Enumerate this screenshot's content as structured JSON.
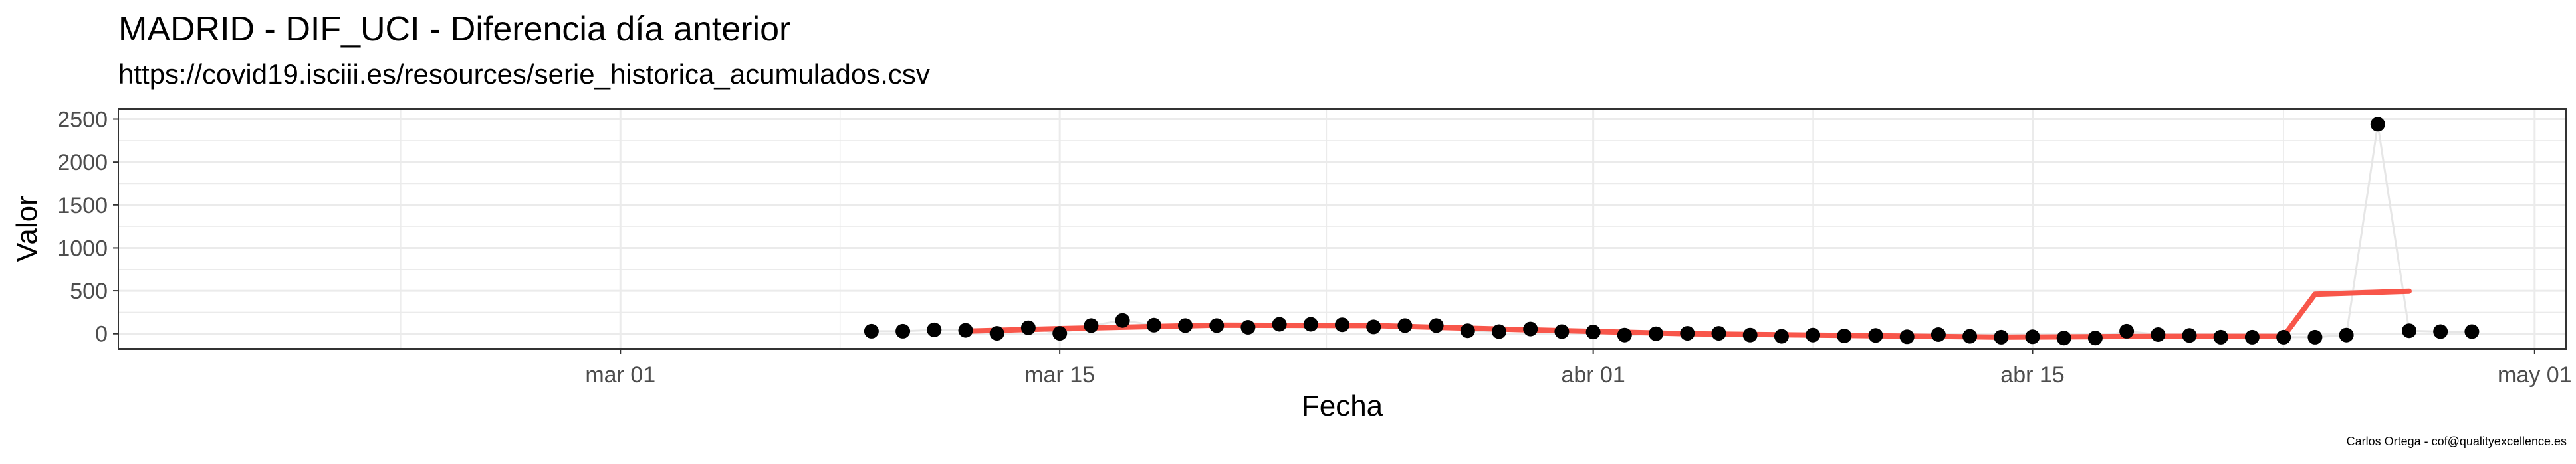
{
  "chart_data": {
    "type": "line",
    "title": "MADRID - DIF_UCI - Diferencia día anterior",
    "subtitle": "https://covid19.isciii.es/resources/serie_historica_acumulados.csv",
    "caption": "Carlos Ortega - cof@qualityexcellence.es",
    "xlabel": "Fecha",
    "ylabel": "Valor",
    "xlim": [
      "2020-02-14",
      "2020-05-02"
    ],
    "ylim": [
      -180,
      2620
    ],
    "grid": true,
    "legend": "none",
    "x_ticks": [
      {
        "date": "2020-03-01",
        "label": "mar 01"
      },
      {
        "date": "2020-03-15",
        "label": "mar 15"
      },
      {
        "date": "2020-04-01",
        "label": "abr 01"
      },
      {
        "date": "2020-04-15",
        "label": "abr 15"
      },
      {
        "date": "2020-05-01",
        "label": "may 01"
      }
    ],
    "y_ticks": [
      0,
      500,
      1000,
      1500,
      2000,
      2500
    ],
    "colors": {
      "points": "#000000",
      "connecting_line": "#e6e6e6",
      "smooth_line": "#f8564a",
      "grid": "#ebebeb",
      "panel_border": "#333333"
    },
    "series": [
      {
        "kind": "points",
        "x": [
          "2020-03-09",
          "2020-03-10",
          "2020-03-11",
          "2020-03-12",
          "2020-03-13",
          "2020-03-14",
          "2020-03-15",
          "2020-03-16",
          "2020-03-17",
          "2020-03-18",
          "2020-03-19",
          "2020-03-20",
          "2020-03-21",
          "2020-03-22",
          "2020-03-23",
          "2020-03-24",
          "2020-03-25",
          "2020-03-26",
          "2020-03-27",
          "2020-03-28",
          "2020-03-29",
          "2020-03-30",
          "2020-03-31",
          "2020-04-01",
          "2020-04-02",
          "2020-04-03",
          "2020-04-04",
          "2020-04-05",
          "2020-04-06",
          "2020-04-07",
          "2020-04-08",
          "2020-04-09",
          "2020-04-10",
          "2020-04-11",
          "2020-04-12",
          "2020-04-13",
          "2020-04-14",
          "2020-04-15",
          "2020-04-16",
          "2020-04-17",
          "2020-04-18",
          "2020-04-19",
          "2020-04-20",
          "2020-04-21",
          "2020-04-22",
          "2020-04-23",
          "2020-04-24",
          "2020-04-25",
          "2020-04-26",
          "2020-04-27",
          "2020-04-28",
          "2020-04-29"
        ],
        "y": [
          30,
          30,
          45,
          40,
          5,
          70,
          5,
          95,
          155,
          100,
          95,
          95,
          75,
          110,
          110,
          105,
          80,
          95,
          95,
          35,
          25,
          55,
          25,
          20,
          -15,
          0,
          5,
          5,
          -15,
          -30,
          -15,
          -25,
          -20,
          -35,
          -10,
          -30,
          -40,
          -35,
          -50,
          -50,
          30,
          -10,
          -20,
          -40,
          -40,
          -40,
          -40,
          -15,
          2440,
          35,
          25,
          25
        ]
      },
      {
        "kind": "smooth",
        "x": [
          "2020-03-12",
          "2020-03-15",
          "2020-03-20",
          "2020-03-25",
          "2020-03-30",
          "2020-04-04",
          "2020-04-09",
          "2020-04-14",
          "2020-04-19",
          "2020-04-23",
          "2020-04-24",
          "2020-04-27"
        ],
        "y": [
          30,
          60,
          100,
          95,
          45,
          0,
          -20,
          -40,
          -30,
          -30,
          460,
          495
        ]
      }
    ]
  }
}
